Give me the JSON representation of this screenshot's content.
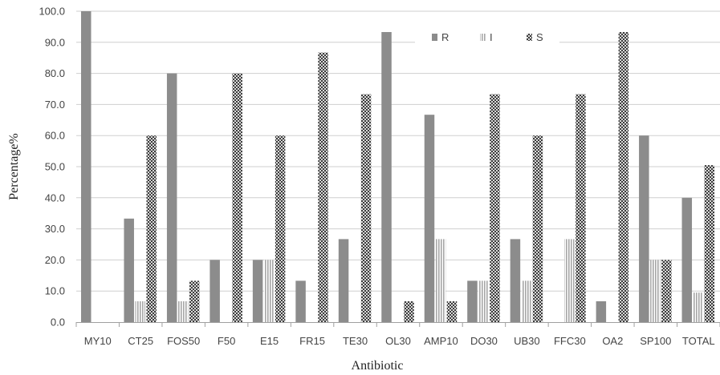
{
  "chart_data": {
    "type": "bar",
    "title": "",
    "xlabel": "Antibiotic",
    "ylabel": "Percentage%",
    "ylim": [
      0,
      100
    ],
    "yticks": [
      "0.0",
      "10.0",
      "20.0",
      "30.0",
      "40.0",
      "50.0",
      "60.0",
      "70.0",
      "80.0",
      "90.0",
      "100.0"
    ],
    "grid": true,
    "legend_position": "top-right",
    "categories": [
      "MY10",
      "CT25",
      "FOS50",
      "F50",
      "E15",
      "FR15",
      "TE30",
      "OL30",
      "AMP10",
      "DO30",
      "UB30",
      "FFC30",
      "OA2",
      "SP100",
      "TOTAL"
    ],
    "series": [
      {
        "name": "R",
        "pattern": "solid",
        "color": "#8c8c8c",
        "values": [
          100,
          33.3,
          80,
          20,
          20,
          13.3,
          26.7,
          93.3,
          66.7,
          13.3,
          26.7,
          0,
          6.7,
          60,
          40
        ]
      },
      {
        "name": "I",
        "pattern": "vertical-lines",
        "color": "#b5b5b5",
        "values": [
          0,
          6.7,
          6.7,
          0,
          20,
          0,
          0,
          0,
          26.7,
          13.3,
          13.3,
          26.7,
          0,
          20,
          9.5
        ]
      },
      {
        "name": "S",
        "pattern": "checker",
        "color": "#555555",
        "values": [
          0,
          60,
          13.3,
          80,
          60,
          86.7,
          73.3,
          6.7,
          6.7,
          73.3,
          60,
          73.3,
          93.3,
          20,
          50.5
        ]
      }
    ]
  }
}
